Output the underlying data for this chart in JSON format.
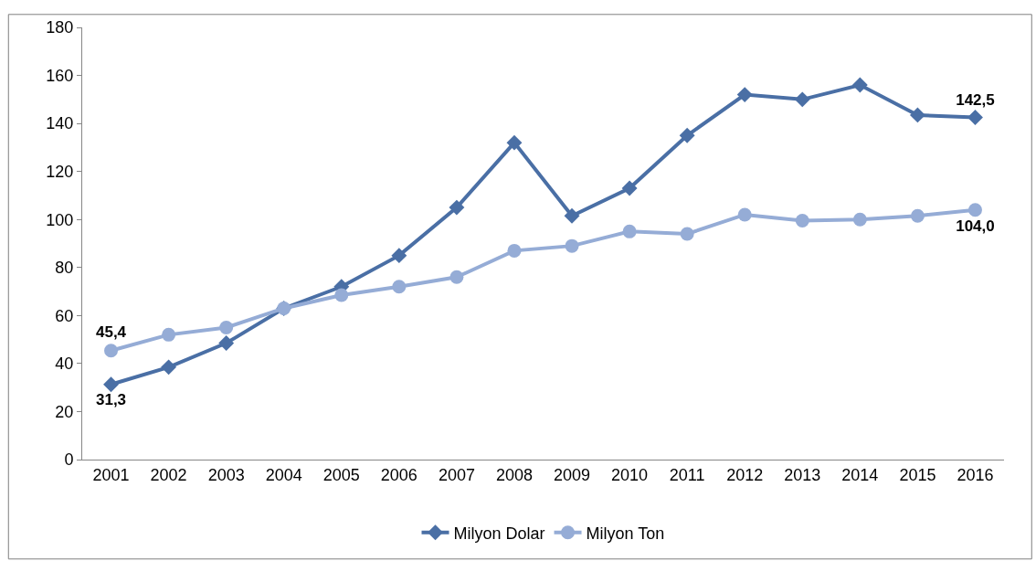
{
  "chart_data": {
    "type": "line",
    "categories": [
      "2001",
      "2002",
      "2003",
      "2004",
      "2005",
      "2006",
      "2007",
      "2008",
      "2009",
      "2010",
      "2011",
      "2012",
      "2013",
      "2014",
      "2015",
      "2016"
    ],
    "series": [
      {
        "name": "Milyon Dolar",
        "color": "#4a6fa5",
        "marker": "diamond",
        "values": [
          31.3,
          38.5,
          48.5,
          63,
          72,
          85,
          105,
          132,
          101.5,
          113,
          135,
          152,
          150,
          156,
          143.5,
          142.5
        ],
        "value_labels": [
          "31,3",
          null,
          null,
          null,
          null,
          null,
          null,
          null,
          null,
          null,
          null,
          null,
          null,
          null,
          null,
          "142,5"
        ]
      },
      {
        "name": "Milyon Ton",
        "color": "#95acd6",
        "marker": "circle",
        "values": [
          45.4,
          52,
          55,
          63,
          68.5,
          72,
          76,
          87,
          89,
          95,
          94,
          102,
          99.5,
          100,
          101.5,
          104
        ],
        "value_labels": [
          "45,4",
          null,
          null,
          null,
          null,
          null,
          null,
          null,
          null,
          null,
          null,
          null,
          null,
          null,
          null,
          "104,0"
        ]
      }
    ],
    "ylim": [
      0,
      180
    ],
    "yticks": [
      0,
      20,
      40,
      60,
      80,
      100,
      120,
      140,
      160,
      180
    ],
    "legend": "bottom"
  }
}
